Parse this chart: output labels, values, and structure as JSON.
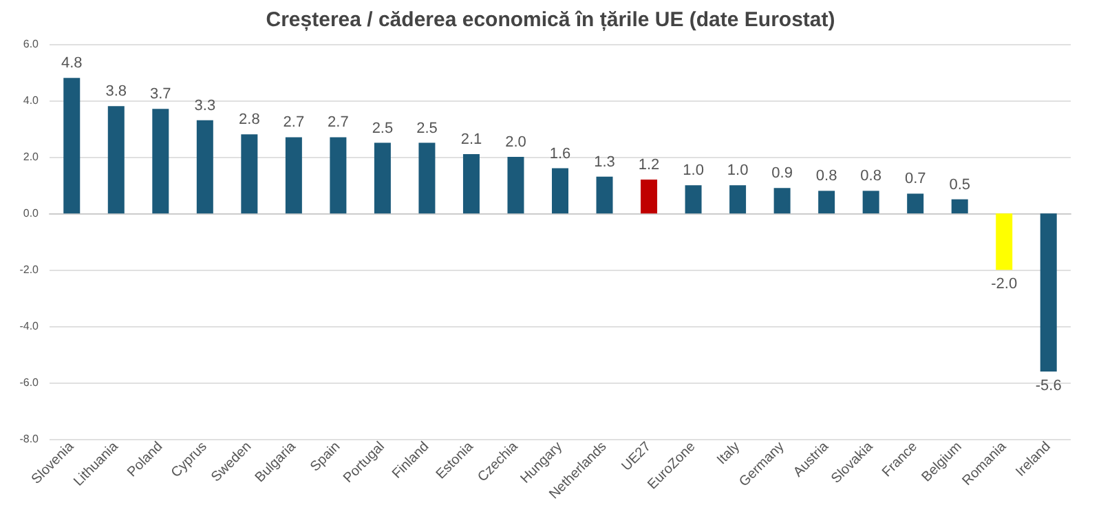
{
  "chart_data": {
    "type": "bar",
    "title": "Creșterea / căderea economică în țările UE (date Eurostat)",
    "categories": [
      "Slovenia",
      "Lithuania",
      "Poland",
      "Cyprus",
      "Sweden",
      "Bulgaria",
      "Spain",
      "Portugal",
      "Finland",
      "Estonia",
      "Czechia",
      "Hungary",
      "Netherlands",
      "UE27",
      "EuroZone",
      "Italy",
      "Germany",
      "Austria",
      "Slovakia",
      "France",
      "Belgium",
      "Romania",
      "Ireland"
    ],
    "values": [
      4.8,
      3.8,
      3.7,
      3.3,
      2.8,
      2.7,
      2.7,
      2.5,
      2.5,
      2.1,
      2.0,
      1.6,
      1.3,
      1.2,
      1.0,
      1.0,
      0.9,
      0.8,
      0.8,
      0.7,
      0.5,
      -2.0,
      -5.6
    ],
    "value_labels": [
      "4.8",
      "3.8",
      "3.7",
      "3.3",
      "2.8",
      "2.7",
      "2.7",
      "2.5",
      "2.5",
      "2.1",
      "2.0",
      "1.6",
      "1.3",
      "1.2",
      "1.0",
      "1.0",
      "0.9",
      "0.8",
      "0.8",
      "0.7",
      "0.5",
      "-2.0",
      "-5.6"
    ],
    "colors": [
      "#1b5a7a",
      "#1b5a7a",
      "#1b5a7a",
      "#1b5a7a",
      "#1b5a7a",
      "#1b5a7a",
      "#1b5a7a",
      "#1b5a7a",
      "#1b5a7a",
      "#1b5a7a",
      "#1b5a7a",
      "#1b5a7a",
      "#1b5a7a",
      "#c00000",
      "#1b5a7a",
      "#1b5a7a",
      "#1b5a7a",
      "#1b5a7a",
      "#1b5a7a",
      "#1b5a7a",
      "#1b5a7a",
      "#ffff00",
      "#1b5a7a"
    ],
    "ylim": [
      -8,
      6
    ],
    "yticks": [
      {
        "value": -8,
        "label": "-8.0"
      },
      {
        "value": -6,
        "label": "-6.0"
      },
      {
        "value": -4,
        "label": "-4.0"
      },
      {
        "value": -2,
        "label": "-2.0"
      },
      {
        "value": 0,
        "label": "0.0"
      },
      {
        "value": 2,
        "label": "2.0"
      },
      {
        "value": 4,
        "label": "4.0"
      },
      {
        "value": 6,
        "label": "6.0"
      }
    ],
    "grid": "y"
  }
}
